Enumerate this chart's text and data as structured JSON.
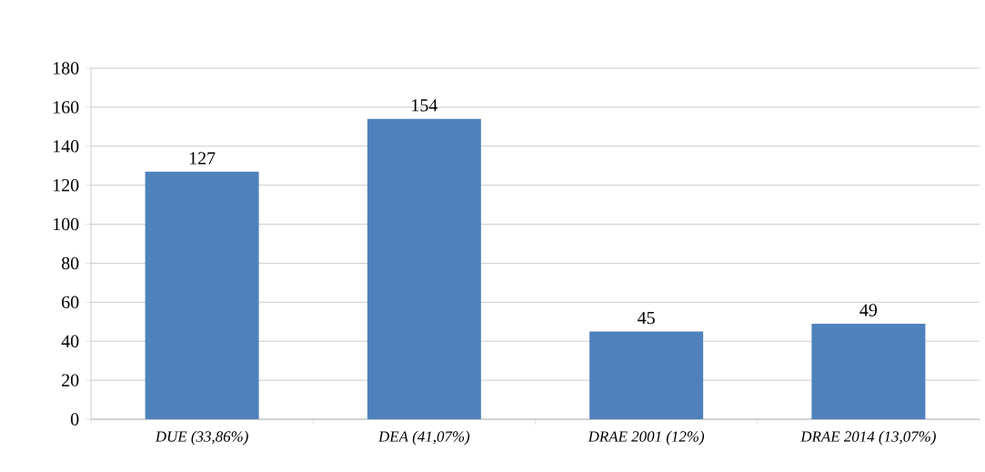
{
  "chart_data": {
    "type": "bar",
    "categories": [
      "DUE (33,86%)",
      "DEA (41,07%)",
      "DRAE 2001 (12%)",
      "DRAE 2014 (13,07%)"
    ],
    "values": [
      127,
      154,
      45,
      49
    ],
    "color": "#4f81bd",
    "data_labels": true,
    "ylim": [
      0,
      180
    ],
    "yticks": [
      0,
      20,
      40,
      60,
      80,
      100,
      120,
      140,
      160,
      180
    ],
    "grid": "y"
  }
}
